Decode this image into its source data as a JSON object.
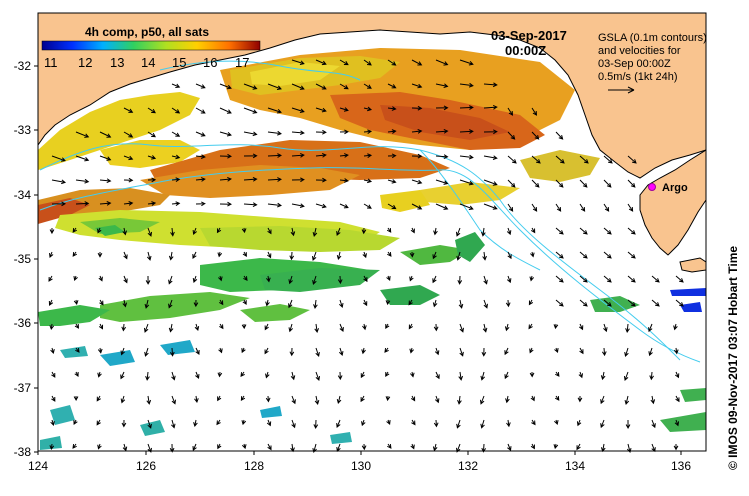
{
  "legend": {
    "title": "4h comp, p50, all sats",
    "ticks": [
      "11",
      "12",
      "13",
      "14",
      "15",
      "16",
      "17"
    ]
  },
  "timestamp": {
    "date": "03-Sep-2017",
    "time": "00:00Z"
  },
  "info": {
    "line1": "GSLA (0.1m contours)",
    "line2": "and velocities for",
    "line3": "03-Sep 00:00Z",
    "line4": "0.5m/s (1kt 24h)"
  },
  "argo_label": "Argo",
  "axes": {
    "x_ticks": [
      "124",
      "126",
      "128",
      "130",
      "132",
      "134",
      "136"
    ],
    "y_ticks": [
      "-32",
      "-33",
      "-34",
      "-35",
      "-36",
      "-37",
      "-38"
    ]
  },
  "credit": "© IMOS 09-Nov-2017 03:07 Hobart Time",
  "colors": {
    "land": "#f9c48f",
    "ocean": "#ffffff",
    "contour": "#44ccee",
    "argo": "#ff00ff",
    "sst_warm": "#d86a10",
    "sst_mid": "#e6d020",
    "sst_cool": "#3cb84a",
    "sst_cold": "#20a8c8"
  }
}
